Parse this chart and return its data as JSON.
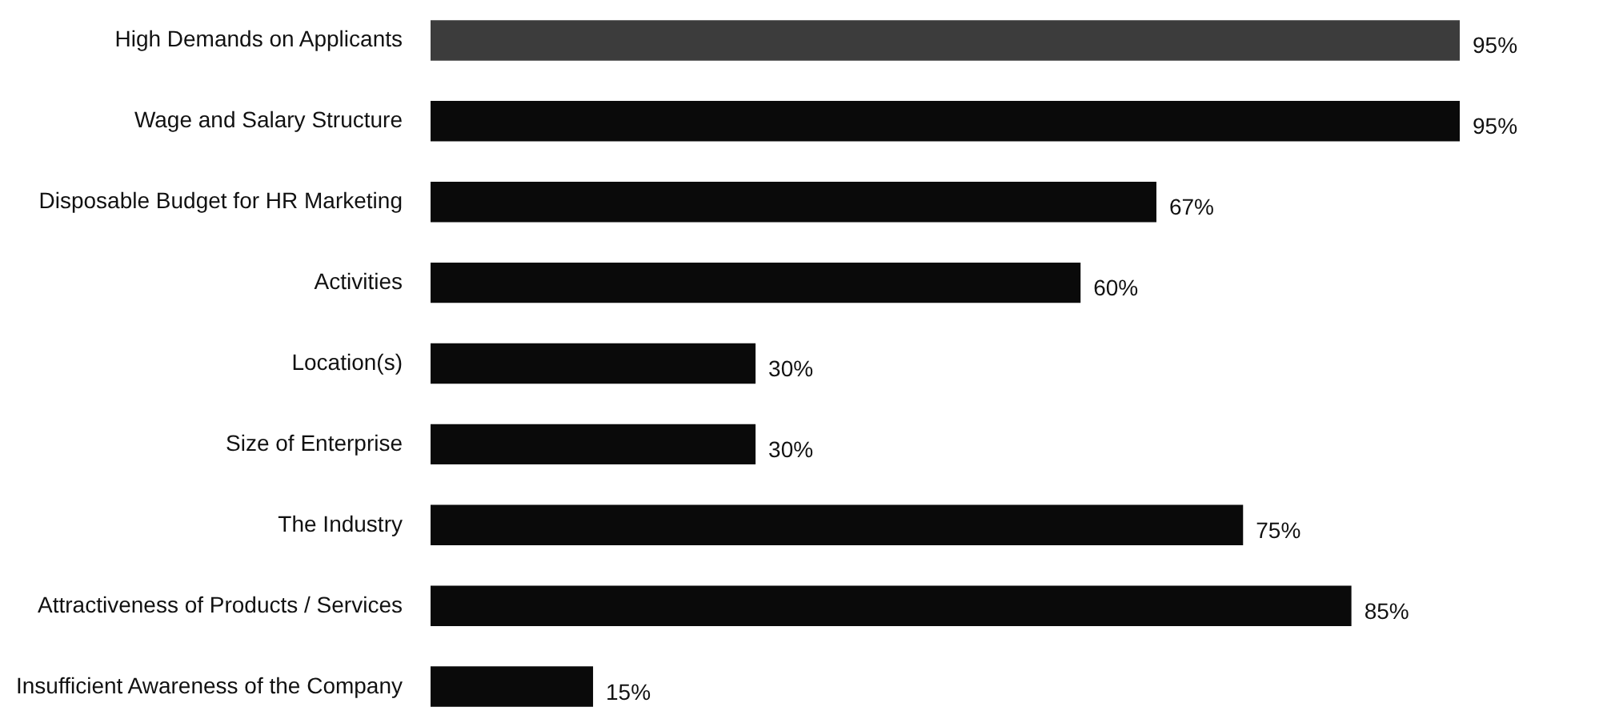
{
  "chart_data": {
    "type": "bar",
    "orientation": "horizontal",
    "categories": [
      "High Demands on Applicants",
      "Wage and Salary Structure",
      "Disposable Budget for HR Marketing",
      "Activities",
      "Location(s)",
      "Size of Enterprise",
      "The Industry",
      "Attractiveness of Products / Services",
      "Insufficient Awareness of the Company"
    ],
    "values": [
      95,
      95,
      67,
      60,
      30,
      30,
      75,
      85,
      15
    ],
    "value_labels": [
      "95%",
      "95%",
      "67%",
      "60%",
      "30%",
      "30%",
      "75%",
      "85%",
      "15%"
    ],
    "colors": [
      "#3c3c3c",
      "#0a0a0a",
      "#0a0a0a",
      "#0a0a0a",
      "#0a0a0a",
      "#0a0a0a",
      "#0a0a0a",
      "#0a0a0a",
      "#0a0a0a"
    ]
  }
}
